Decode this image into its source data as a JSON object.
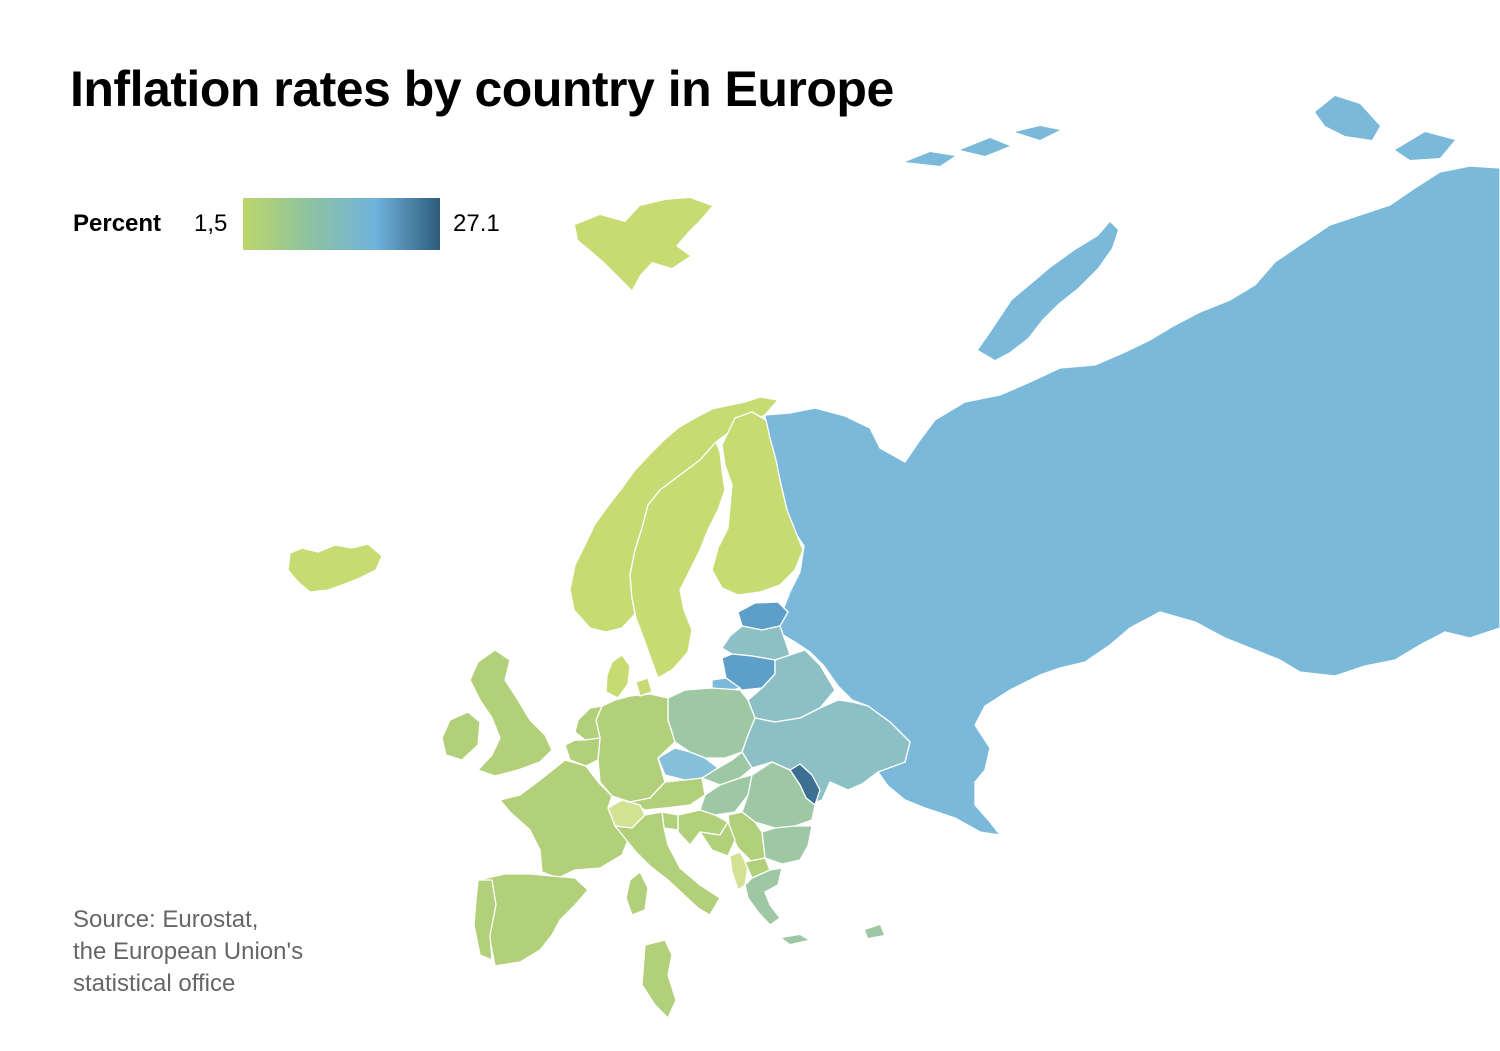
{
  "title": "Inflation rates by country in Europe",
  "legend": {
    "label": "Percent",
    "min_label": "1,5",
    "max_label": "27.1",
    "min_value": 1.5,
    "max_value": 27.1,
    "scale_colors": [
      "#bdd66a",
      "#8fc3a0",
      "#6fb3dc",
      "#2e5c7a"
    ]
  },
  "source": {
    "line1": "Source: Eurostat,",
    "line2": "the European Union's",
    "line3": "statistical office"
  },
  "colors": {
    "russia": "#7ab9d9",
    "baltic_high": "#5d9fc9",
    "central_east": "#9ec8a4",
    "east": "#8cc0c5",
    "west": "#b2d07a",
    "north": "#c6db72",
    "light": "#d3e193",
    "moldova": "#3d6f93",
    "czechia": "#86bfd8"
  }
}
